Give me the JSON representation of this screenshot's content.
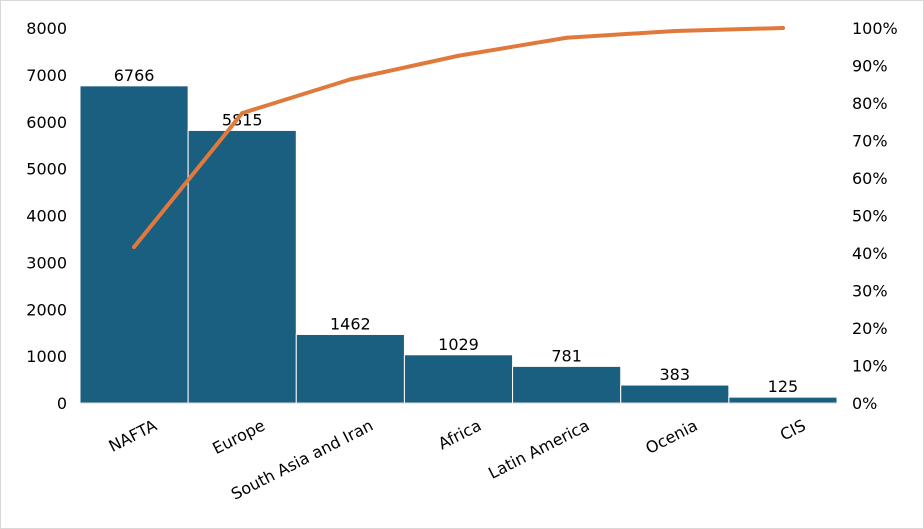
{
  "chart_data": {
    "type": "bar",
    "categories": [
      "NAFTA",
      "Europe",
      "South Asia and Iran",
      "Africa",
      "Latin America",
      "Ocenia",
      "CIS"
    ],
    "series": [
      {
        "type": "bar",
        "values": [
          6766,
          5815,
          1462,
          1029,
          781,
          383,
          125
        ],
        "color": "#1a5e80"
      },
      {
        "type": "line",
        "axis": "right",
        "values": [
          41.6,
          77.3,
          86.3,
          92.6,
          97.4,
          99.2,
          100
        ],
        "color": "#e07a3c"
      }
    ],
    "y_left": {
      "min": 0,
      "max": 8000,
      "ticks": [
        "0",
        "1000",
        "2000",
        "3000",
        "4000",
        "5000",
        "6000",
        "7000",
        "8000"
      ]
    },
    "y_right": {
      "min": 0,
      "max": 100,
      "ticks": [
        "0%",
        "10%",
        "20%",
        "30%",
        "40%",
        "50%",
        "60%",
        "70%",
        "80%",
        "90%",
        "100%"
      ]
    },
    "data_labels": [
      "6766",
      "5815",
      "1462",
      "1029",
      "781",
      "383",
      "125"
    ],
    "grid": false,
    "legend": "none"
  }
}
